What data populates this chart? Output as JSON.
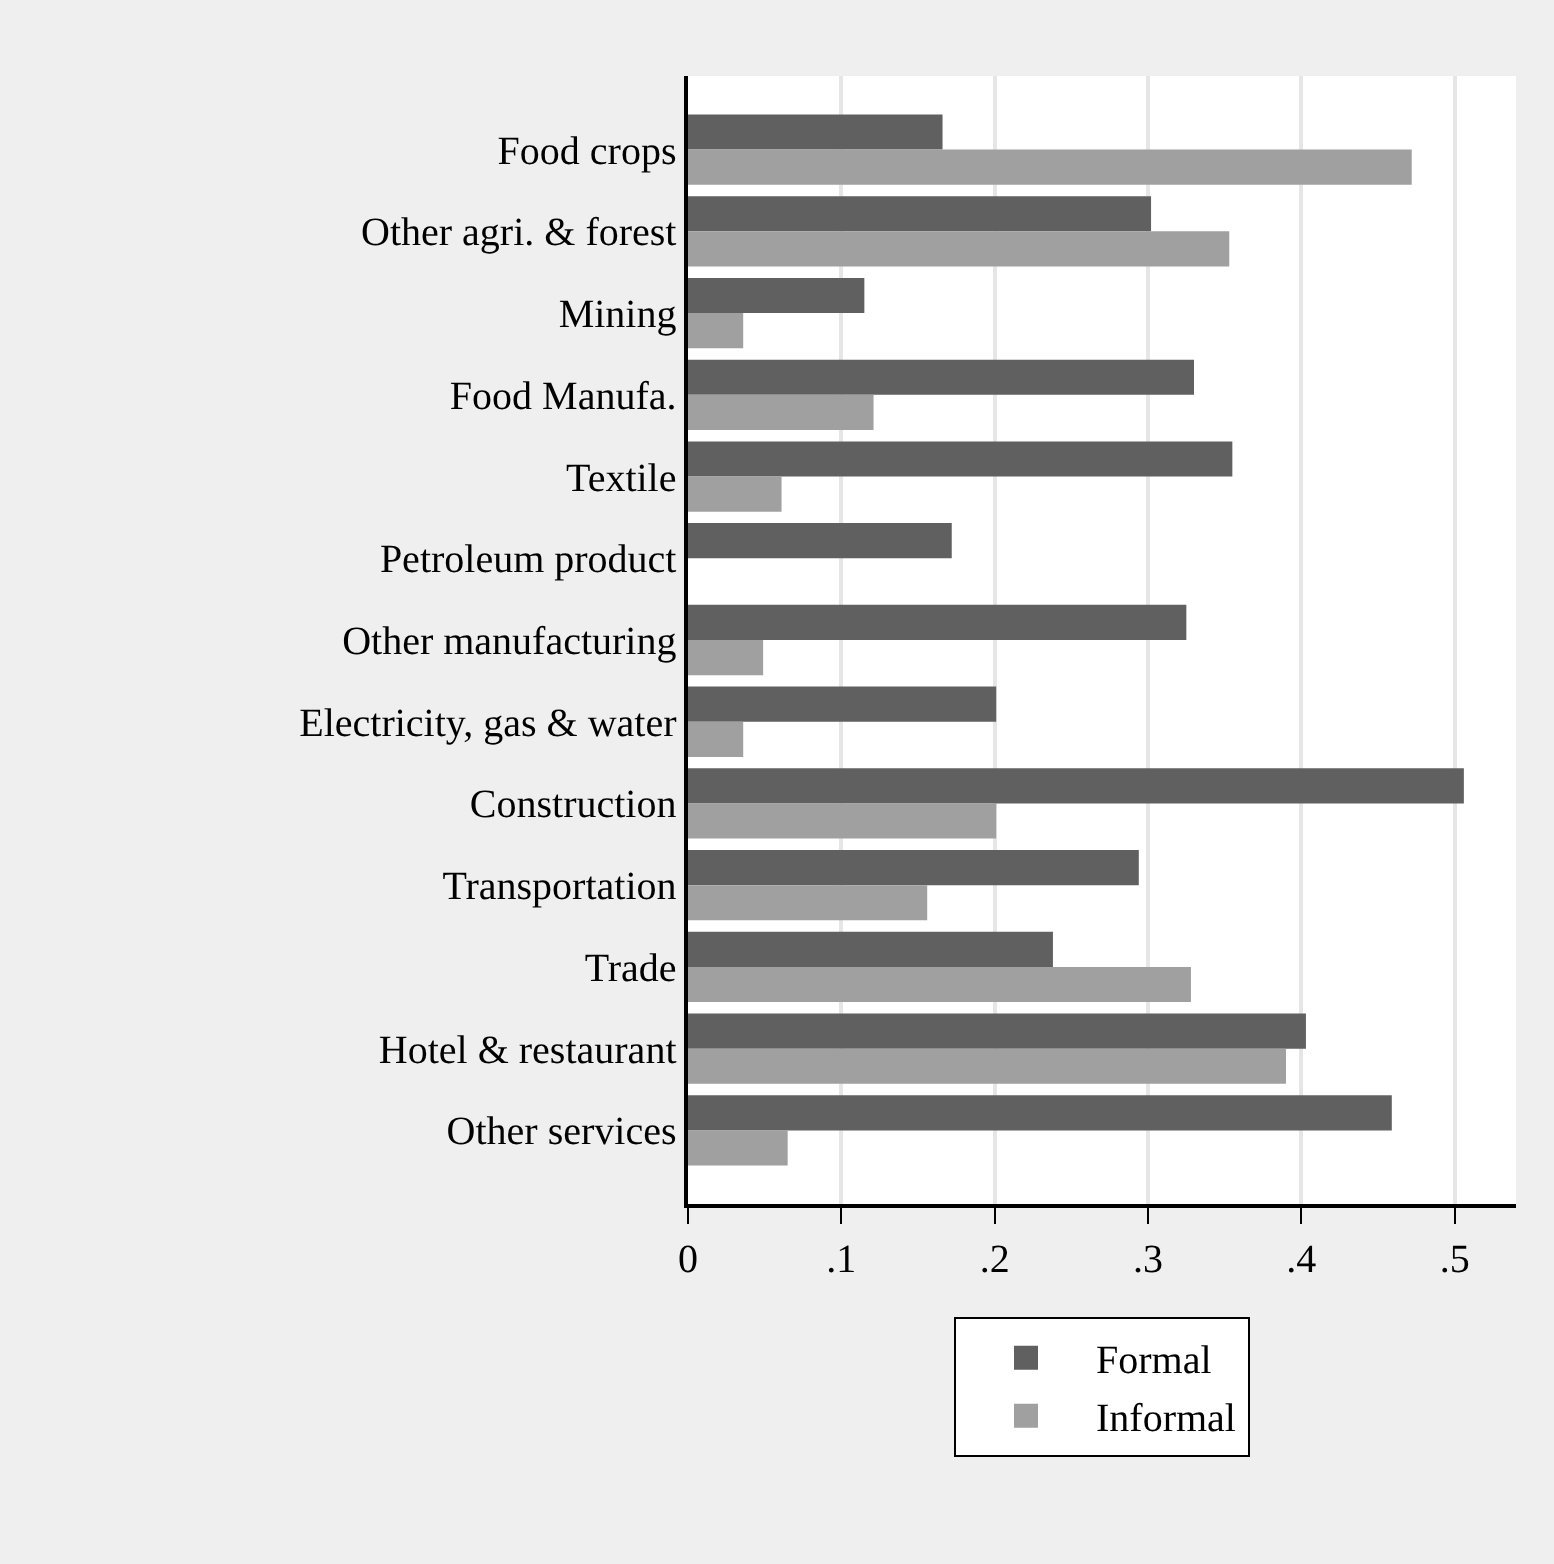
{
  "chart_data": {
    "type": "bar",
    "orientation": "horizontal",
    "categories": [
      "Food crops",
      "Other agri. & forest",
      "Mining",
      "Food Manufa.",
      "Textile",
      "Petroleum product",
      "Other manufacturing",
      "Electricity, gas & water",
      "Construction",
      "Transportation",
      "Trade",
      "Hotel & restaurant",
      "Other services"
    ],
    "series": [
      {
        "name": "Formal",
        "color": "#606060",
        "values": [
          0.166,
          0.302,
          0.115,
          0.33,
          0.355,
          0.172,
          0.325,
          0.201,
          0.506,
          0.294,
          0.238,
          0.403,
          0.459
        ]
      },
      {
        "name": "Informal",
        "color": "#a0a0a0",
        "values": [
          0.472,
          0.353,
          0.036,
          0.121,
          0.061,
          0,
          0.049,
          0.036,
          0.201,
          0.156,
          0.328,
          0.39,
          0.065
        ]
      }
    ],
    "xlim": [
      0,
      0.54
    ],
    "xticks": [
      0,
      {
        "value": 0.1,
        "label": ".1"
      },
      {
        "value": 0.2,
        "label": ".2"
      },
      {
        "value": 0.3,
        "label": ".3"
      },
      {
        "value": 0.4,
        "label": ".4"
      },
      {
        "value": 0.5,
        "label": ".5"
      }
    ],
    "grid": "x",
    "legend": "bottom"
  }
}
